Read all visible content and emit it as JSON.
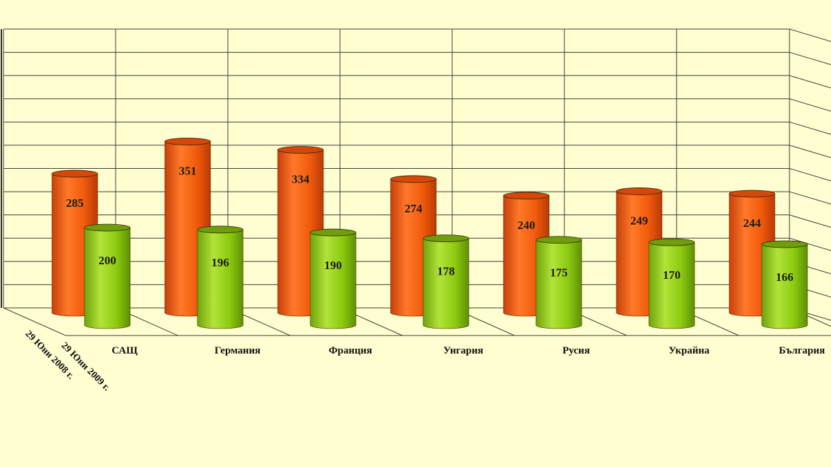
{
  "chart_data": {
    "type": "bar",
    "style": "3d-cylinder",
    "categories": [
      "САЩ",
      "Германия",
      "Франция",
      "Унгария",
      "Русия",
      "Украйна",
      "България"
    ],
    "series": [
      {
        "name": "29 Юни 2008 г.",
        "values": [
          285,
          351,
          334,
          274,
          240,
          249,
          244
        ],
        "color": "#F25A0C"
      },
      {
        "name": "29 Юни 2009 г.",
        "values": [
          200,
          196,
          190,
          178,
          175,
          170,
          166
        ],
        "color": "#8CCB10"
      }
    ],
    "title": "",
    "xlabel": "",
    "ylabel": "",
    "grid": true,
    "background_color": "#FEFED0"
  }
}
